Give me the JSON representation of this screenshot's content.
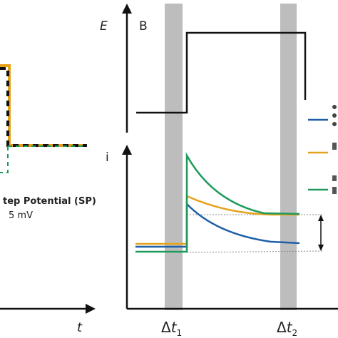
{
  "left_panel": {
    "title": "tep Potential (SP)",
    "value": "5 mV",
    "x_axis_label": "t"
  },
  "top_panel": {
    "y_axis_label": "E",
    "panel_letter": "B"
  },
  "bottom_panel": {
    "y_axis_label": "i",
    "markers": [
      "Δt1",
      "Δt2"
    ]
  },
  "colors": {
    "blue": "#1f5fa8",
    "orange": "#e6a21a",
    "green": "#1f9a5c",
    "gray_band": "#bdbdbd",
    "axis": "#111111"
  },
  "legend_icons": [
    "blue-line-icon",
    "orange-line-icon",
    "green-line-icon"
  ]
}
